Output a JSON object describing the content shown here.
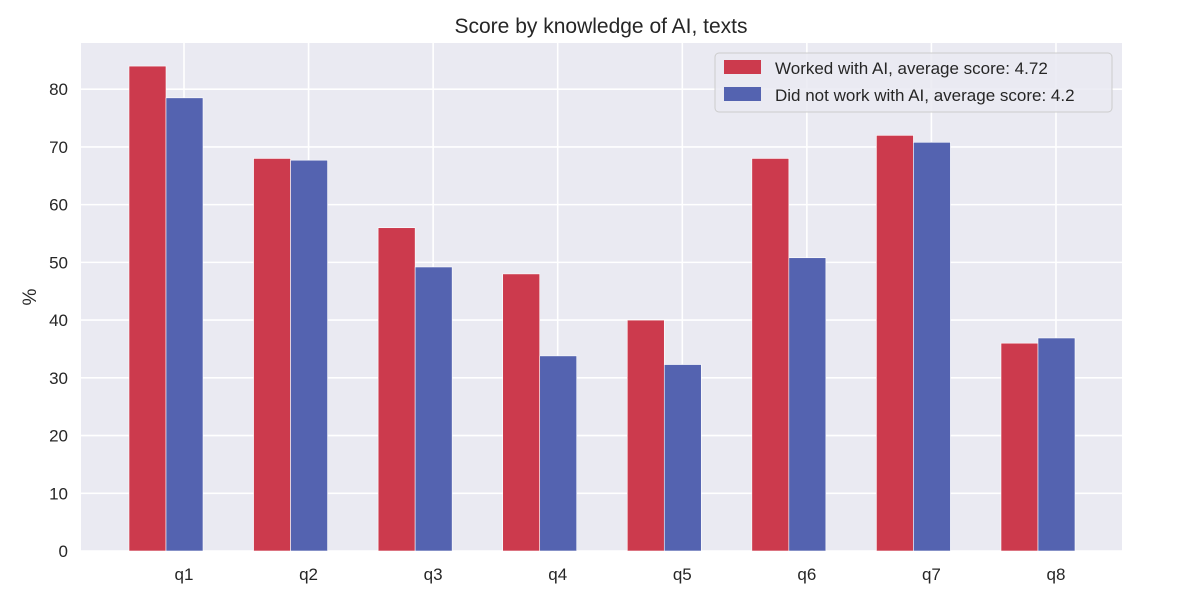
{
  "chart_data": {
    "type": "bar",
    "title": "Score by knowledge of AI, texts",
    "xlabel": "",
    "ylabel": "%",
    "categories": [
      "q1",
      "q2",
      "q3",
      "q4",
      "q5",
      "q6",
      "q7",
      "q8"
    ],
    "series": [
      {
        "name": "Worked with AI, average score: 4.72",
        "color": "#cc3a4d",
        "values": [
          84,
          68,
          56,
          48,
          40,
          68,
          72,
          36
        ]
      },
      {
        "name": "Did not work with AI, average score: 4.2",
        "color": "#5463b0",
        "values": [
          78.5,
          67.7,
          49.2,
          33.8,
          32.3,
          50.8,
          70.8,
          36.9
        ]
      }
    ],
    "ylim": [
      0,
      88
    ],
    "yticks": [
      0,
      10,
      20,
      30,
      40,
      50,
      60,
      70,
      80
    ],
    "grid": true,
    "legend": "top-right",
    "background": "#eaeaf2",
    "grid_color": "#ffffff"
  }
}
